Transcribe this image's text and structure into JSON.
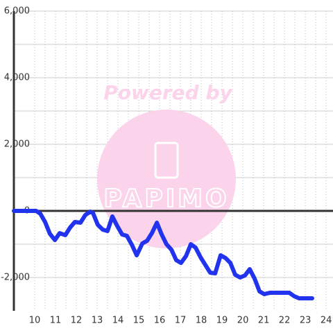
{
  "chart_data": {
    "type": "line",
    "watermark": [
      "Powered by",
      "PAPIMO"
    ],
    "x": [
      9.0,
      10.07,
      10.27,
      10.5,
      10.73,
      10.97,
      11.2,
      11.47,
      11.7,
      11.93,
      12.2,
      12.43,
      12.67,
      12.8,
      13.03,
      13.27,
      13.5,
      13.73,
      13.97,
      14.2,
      14.43,
      14.67,
      14.9,
      15.17,
      15.4,
      15.63,
      15.87,
      16.1,
      16.33,
      16.57,
      16.8,
      17.03,
      17.27,
      17.5,
      17.73,
      17.97,
      18.2,
      18.43,
      18.67,
      18.93,
      19.17,
      19.4,
      19.63,
      19.87,
      20.1,
      20.33,
      20.57,
      20.8,
      21.03,
      21.3,
      21.53,
      21.77,
      22.0,
      22.23,
      22.47,
      22.7,
      23.33
    ],
    "series": [
      {
        "color": "#2233ee",
        "values": [
          0,
          0,
          -83,
          -333,
          -688,
          -875,
          -667,
          -729,
          -500,
          -333,
          -354,
          -125,
          -21,
          -63,
          -417,
          -563,
          -604,
          -167,
          -458,
          -708,
          -750,
          -1021,
          -1333,
          -979,
          -896,
          -667,
          -354,
          -708,
          -1000,
          -1167,
          -1479,
          -1563,
          -1354,
          -1000,
          -1104,
          -1396,
          -1625,
          -1854,
          -1875,
          -1333,
          -1417,
          -1563,
          -1917,
          -2000,
          -1938,
          -1750,
          -2042,
          -2417,
          -2500,
          -2458,
          -2458,
          -2458,
          -2458,
          -2458,
          -2563,
          -2625,
          -2625
        ]
      }
    ],
    "xlim": [
      9,
      24.33
    ],
    "xticks": [
      10,
      11,
      12,
      13,
      14,
      15,
      16,
      17,
      18,
      19,
      20,
      21,
      22,
      23,
      24
    ],
    "ylim": [
      -3000,
      6000
    ],
    "yticks": [
      {
        "value": -2000,
        "label": "-2,000"
      },
      0,
      {
        "value": 2000,
        "label": "2,000"
      },
      {
        "value": 4000,
        "label": "4,000"
      },
      {
        "value": 6000,
        "label": "6,000"
      }
    ],
    "grid": true
  }
}
